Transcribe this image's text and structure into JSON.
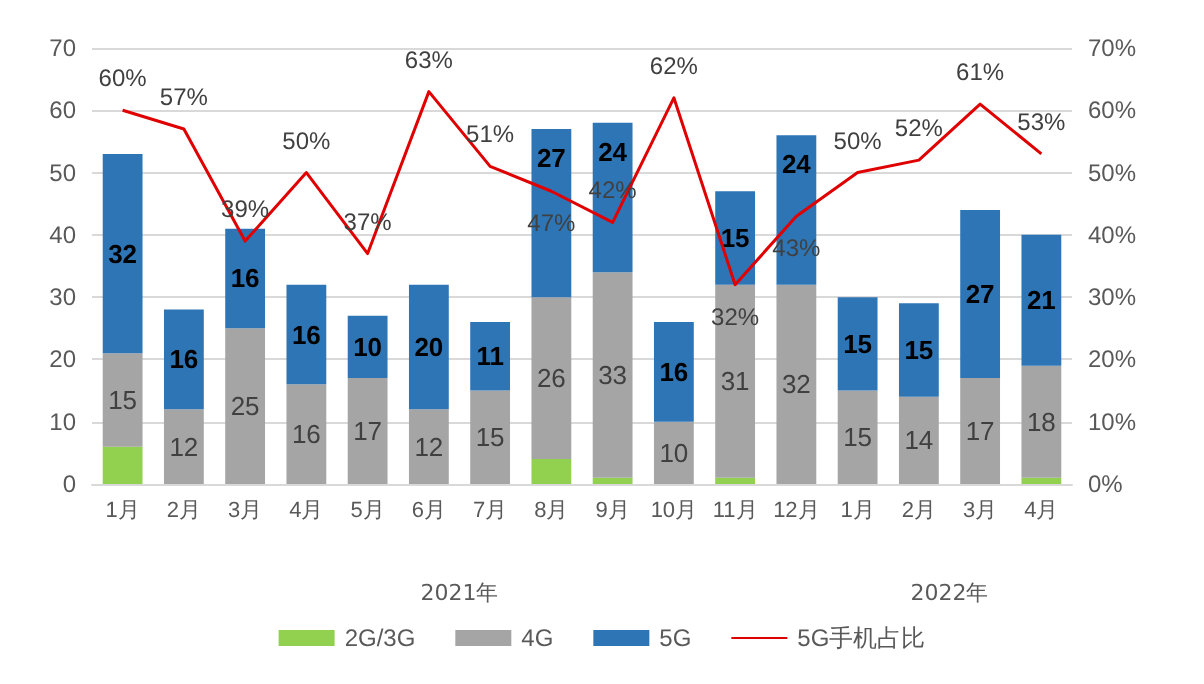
{
  "chart_data": {
    "type": "bar",
    "stacked": true,
    "categories": [
      "1月",
      "2月",
      "3月",
      "4月",
      "5月",
      "6月",
      "7月",
      "8月",
      "9月",
      "10月",
      "11月",
      "12月",
      "1月",
      "2月",
      "3月",
      "4月"
    ],
    "series": [
      {
        "name": "2G/3G",
        "color": "#92d050",
        "values": [
          6,
          0,
          0,
          0,
          0,
          0,
          0,
          4,
          1,
          0,
          1,
          0,
          0,
          0,
          0,
          1
        ]
      },
      {
        "name": "4G",
        "color": "#a5a5a5",
        "values": [
          15,
          12,
          25,
          16,
          17,
          12,
          15,
          26,
          33,
          10,
          31,
          32,
          15,
          14,
          17,
          18
        ],
        "value_labels": [
          "15",
          "12",
          "25",
          "16",
          "17",
          "12",
          "15",
          "26",
          "33",
          "10",
          "31",
          "32",
          "15",
          "14",
          "17",
          "18"
        ]
      },
      {
        "name": "5G",
        "color": "#2e75b6",
        "values": [
          32,
          16,
          16,
          16,
          10,
          20,
          11,
          27,
          24,
          16,
          15,
          24,
          15,
          15,
          27,
          21
        ],
        "value_labels": [
          "32",
          "16",
          "16",
          "16",
          "10",
          "20",
          "11",
          "27",
          "24",
          "16",
          "15",
          "24",
          "15",
          "15",
          "27",
          "21"
        ]
      },
      {
        "name": "5G手机占比",
        "type": "line",
        "axis": "y2",
        "color": "#e00000",
        "values": [
          60,
          57,
          39,
          50,
          37,
          63,
          51,
          47,
          42,
          62,
          32,
          43,
          50,
          52,
          61,
          53
        ],
        "value_labels": [
          "60%",
          "57%",
          "39%",
          "50%",
          "37%",
          "63%",
          "51%",
          "47%",
          "42%",
          "62%",
          "32%",
          "43%",
          "50%",
          "52%",
          "61%",
          "53%"
        ]
      }
    ],
    "ylim": [
      0,
      70
    ],
    "yticks": [
      0,
      10,
      20,
      30,
      40,
      50,
      60,
      70
    ],
    "y2lim": [
      0,
      70
    ],
    "y2ticks": [
      {
        "value": 0,
        "label": "0%"
      },
      {
        "value": 10,
        "label": "10%"
      },
      {
        "value": 20,
        "label": "20%"
      },
      {
        "value": 30,
        "label": "30%"
      },
      {
        "value": 40,
        "label": "40%"
      },
      {
        "value": 50,
        "label": "50%"
      },
      {
        "value": 60,
        "label": "60%"
      },
      {
        "value": 70,
        "label": "70%"
      }
    ],
    "annotations": [
      "2021年",
      "2022年"
    ],
    "grid": "y",
    "legend": "bottom",
    "marker": "none",
    "line_style": "solid"
  }
}
